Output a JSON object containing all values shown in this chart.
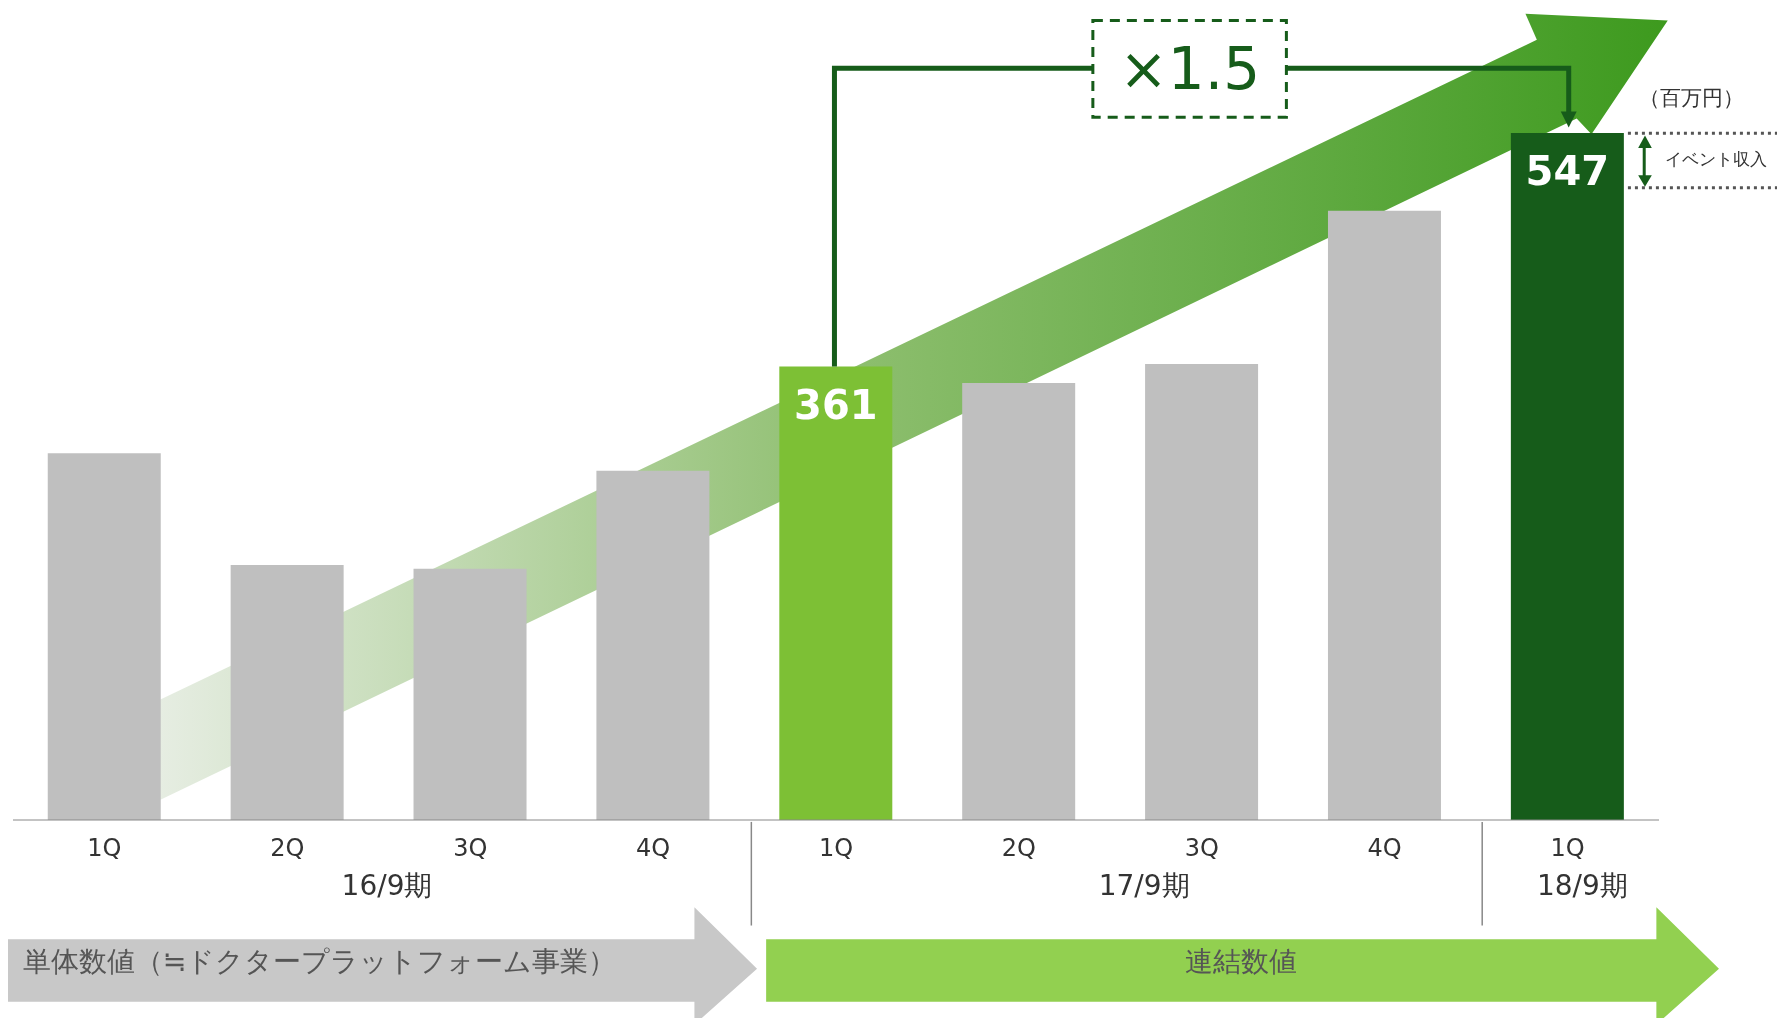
{
  "chart_data": {
    "type": "bar",
    "categories": [
      "1Q",
      "2Q",
      "3Q",
      "4Q",
      "1Q",
      "2Q",
      "3Q",
      "4Q",
      "1Q"
    ],
    "values": [
      292,
      203,
      200,
      278,
      361,
      348,
      363,
      485,
      547
    ],
    "colors": [
      "#bfbfbf",
      "#bfbfbf",
      "#bfbfbf",
      "#bfbfbf",
      "#7dc035",
      "#bfbfbf",
      "#bfbfbf",
      "#bfbfbf",
      "#165c1a"
    ],
    "value_labels": [
      null,
      null,
      null,
      null,
      "361",
      null,
      null,
      null,
      "547"
    ],
    "annotations": [
      "×1.5",
      "（百万円）",
      "イベント収入",
      "16/9期",
      "17/9期",
      "18/9期",
      "単体数値（≒ドクタープラットフォーム事業）",
      "連結数値"
    ],
    "grid": false,
    "legend": false
  }
}
